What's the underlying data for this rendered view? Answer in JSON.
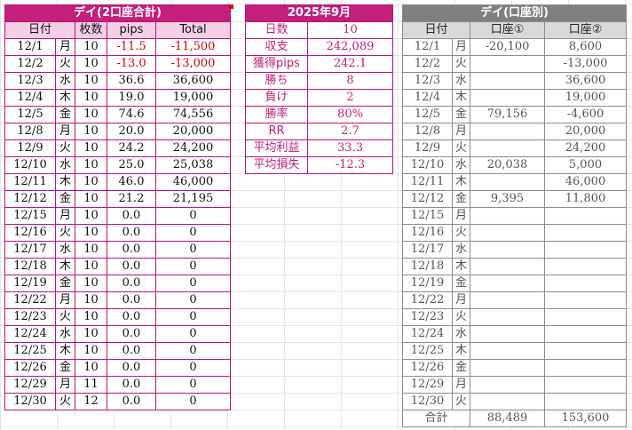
{
  "left": {
    "title": "デイ(2口座合計)",
    "headers": [
      "日付",
      "",
      "枚数",
      "pips",
      "Total"
    ],
    "rows": [
      {
        "date": "12/1",
        "day": "月",
        "lots": "10",
        "pips": "-11.5",
        "total": "-11,500",
        "neg": true
      },
      {
        "date": "12/2",
        "day": "火",
        "lots": "10",
        "pips": "-13.0",
        "total": "-13,000",
        "neg": true
      },
      {
        "date": "12/3",
        "day": "水",
        "lots": "10",
        "pips": "36.6",
        "total": "36,600",
        "neg": false
      },
      {
        "date": "12/4",
        "day": "木",
        "lots": "10",
        "pips": "19.0",
        "total": "19,000",
        "neg": false
      },
      {
        "date": "12/5",
        "day": "金",
        "lots": "10",
        "pips": "74.6",
        "total": "74,556",
        "neg": false
      },
      {
        "date": "12/8",
        "day": "月",
        "lots": "10",
        "pips": "20.0",
        "total": "20,000",
        "neg": false
      },
      {
        "date": "12/9",
        "day": "火",
        "lots": "10",
        "pips": "24.2",
        "total": "24,200",
        "neg": false
      },
      {
        "date": "12/10",
        "day": "水",
        "lots": "10",
        "pips": "25.0",
        "total": "25,038",
        "neg": false
      },
      {
        "date": "12/11",
        "day": "木",
        "lots": "10",
        "pips": "46.0",
        "total": "46,000",
        "neg": false
      },
      {
        "date": "12/12",
        "day": "金",
        "lots": "10",
        "pips": "21.2",
        "total": "21,195",
        "neg": false
      },
      {
        "date": "12/15",
        "day": "月",
        "lots": "10",
        "pips": "0.0",
        "total": "0",
        "neg": false
      },
      {
        "date": "12/16",
        "day": "火",
        "lots": "10",
        "pips": "0.0",
        "total": "0",
        "neg": false
      },
      {
        "date": "12/17",
        "day": "水",
        "lots": "10",
        "pips": "0.0",
        "total": "0",
        "neg": false
      },
      {
        "date": "12/18",
        "day": "木",
        "lots": "10",
        "pips": "0.0",
        "total": "0",
        "neg": false
      },
      {
        "date": "12/19",
        "day": "金",
        "lots": "10",
        "pips": "0.0",
        "total": "0",
        "neg": false
      },
      {
        "date": "12/22",
        "day": "月",
        "lots": "10",
        "pips": "0.0",
        "total": "0",
        "neg": false
      },
      {
        "date": "12/23",
        "day": "火",
        "lots": "10",
        "pips": "0.0",
        "total": "0",
        "neg": false
      },
      {
        "date": "12/24",
        "day": "水",
        "lots": "10",
        "pips": "0.0",
        "total": "0",
        "neg": false
      },
      {
        "date": "12/25",
        "day": "木",
        "lots": "10",
        "pips": "0.0",
        "total": "0",
        "neg": false
      },
      {
        "date": "12/26",
        "day": "金",
        "lots": "10",
        "pips": "0.0",
        "total": "0",
        "neg": false
      },
      {
        "date": "12/29",
        "day": "月",
        "lots": "11",
        "pips": "0.0",
        "total": "0",
        "neg": false
      },
      {
        "date": "12/30",
        "day": "火",
        "lots": "12",
        "pips": "0.0",
        "total": "0",
        "neg": false
      }
    ]
  },
  "stats": {
    "title": "2025年9月",
    "rows": [
      {
        "label": "日数",
        "value": "10"
      },
      {
        "label": "収支",
        "value": "242,089"
      },
      {
        "label": "獲得pips",
        "value": "242.1"
      },
      {
        "label": "勝ち",
        "value": "8"
      },
      {
        "label": "負け",
        "value": "2"
      },
      {
        "label": "勝率",
        "value": "80%"
      },
      {
        "label": "RR",
        "value": "2.7"
      },
      {
        "label": "平均利益",
        "value": "33.3"
      },
      {
        "label": "平均損失",
        "value": "-12.3"
      }
    ]
  },
  "right": {
    "title": "デイ(口座別)",
    "headers": [
      "日付",
      "",
      "口座①",
      "口座②"
    ],
    "rows": [
      {
        "date": "12/1",
        "day": "月",
        "a1": "-20,100",
        "a2": "8,600"
      },
      {
        "date": "12/2",
        "day": "火",
        "a1": "",
        "a2": "-13,000"
      },
      {
        "date": "12/3",
        "day": "水",
        "a1": "",
        "a2": "36,600"
      },
      {
        "date": "12/4",
        "day": "木",
        "a1": "",
        "a2": "19,000"
      },
      {
        "date": "12/5",
        "day": "金",
        "a1": "79,156",
        "a2": "-4,600"
      },
      {
        "date": "12/8",
        "day": "月",
        "a1": "",
        "a2": "20,000"
      },
      {
        "date": "12/9",
        "day": "火",
        "a1": "",
        "a2": "24,200"
      },
      {
        "date": "12/10",
        "day": "水",
        "a1": "20,038",
        "a2": "5,000"
      },
      {
        "date": "12/11",
        "day": "木",
        "a1": "",
        "a2": "46,000"
      },
      {
        "date": "12/12",
        "day": "金",
        "a1": "9,395",
        "a2": "11,800"
      },
      {
        "date": "12/15",
        "day": "月",
        "a1": "",
        "a2": ""
      },
      {
        "date": "12/16",
        "day": "火",
        "a1": "",
        "a2": ""
      },
      {
        "date": "12/17",
        "day": "水",
        "a1": "",
        "a2": ""
      },
      {
        "date": "12/18",
        "day": "木",
        "a1": "",
        "a2": ""
      },
      {
        "date": "12/19",
        "day": "金",
        "a1": "",
        "a2": ""
      },
      {
        "date": "12/22",
        "day": "月",
        "a1": "",
        "a2": ""
      },
      {
        "date": "12/23",
        "day": "火",
        "a1": "",
        "a2": ""
      },
      {
        "date": "12/24",
        "day": "水",
        "a1": "",
        "a2": ""
      },
      {
        "date": "12/25",
        "day": "木",
        "a1": "",
        "a2": ""
      },
      {
        "date": "12/26",
        "day": "金",
        "a1": "",
        "a2": ""
      },
      {
        "date": "12/29",
        "day": "月",
        "a1": "",
        "a2": ""
      },
      {
        "date": "12/30",
        "day": "火",
        "a1": "",
        "a2": ""
      }
    ],
    "sum": {
      "label": "合計",
      "a1": "88,489",
      "a2": "153,600"
    }
  },
  "colors": {
    "magenta": "#c2207a",
    "pink_header": "#f6cfe4",
    "gray_title": "#7f7f7f",
    "negative": "#d40000"
  }
}
